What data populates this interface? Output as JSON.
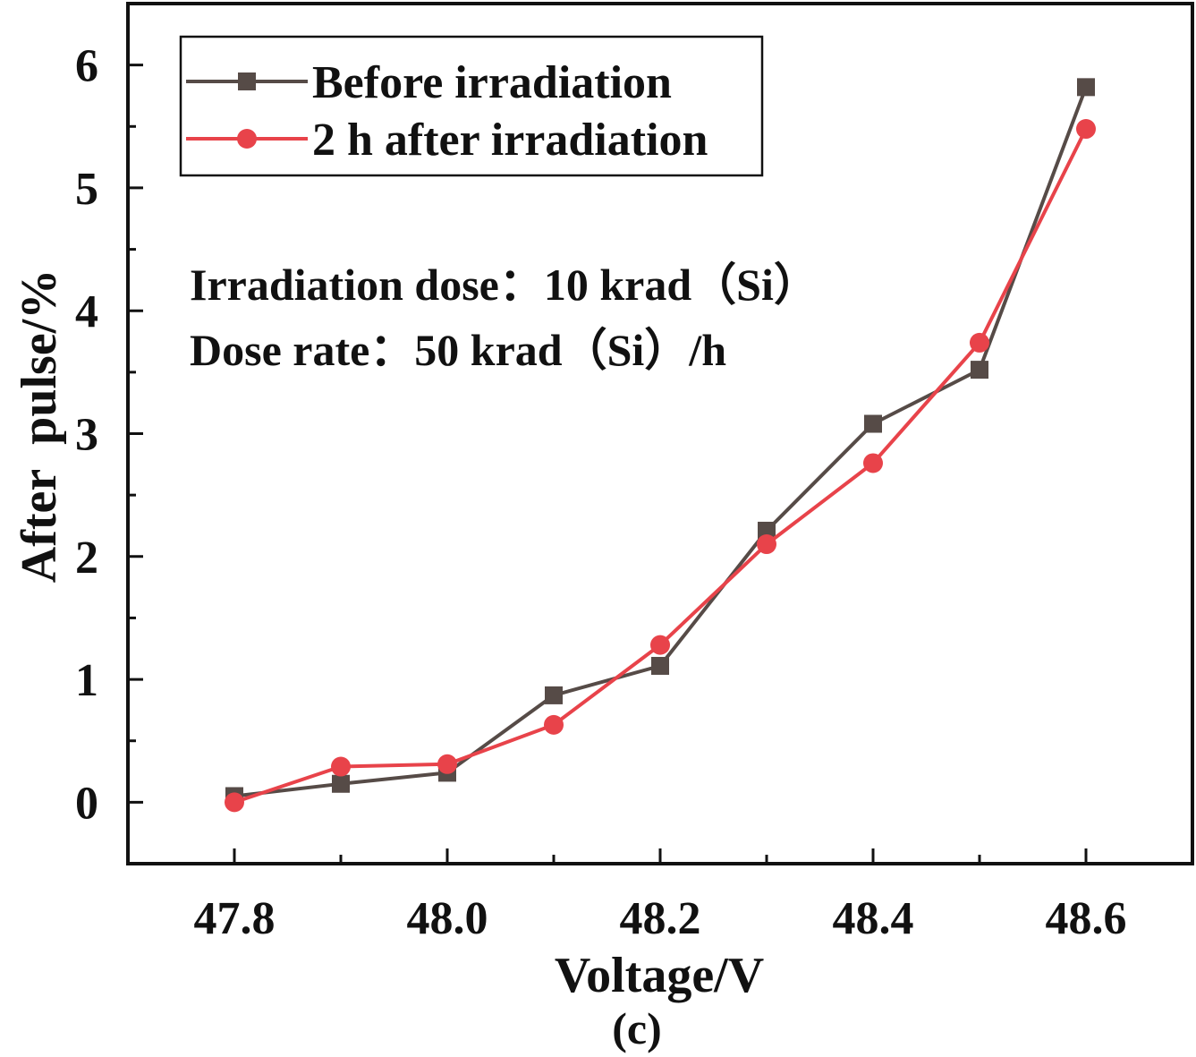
{
  "chart_data": {
    "type": "line",
    "title": "",
    "caption": "(c)",
    "xlabel": "Voltage/V",
    "ylabel": "After  pulse/%",
    "xlim": [
      47.7,
      48.7
    ],
    "ylim": [
      -0.5,
      6.5
    ],
    "x_major_ticks": [
      47.8,
      48.0,
      48.2,
      48.4,
      48.6
    ],
    "x_tick_labels": [
      "47.8",
      "48.0",
      "48.2",
      "48.4",
      "48.6"
    ],
    "x_minor_ticks": [
      47.9,
      48.1,
      48.3,
      48.5
    ],
    "y_major_ticks": [
      0,
      1,
      2,
      3,
      4,
      5,
      6
    ],
    "y_tick_labels": [
      "0",
      "1",
      "2",
      "3",
      "4",
      "5",
      "6"
    ],
    "y_minor_ticks": [
      0.5,
      1.5,
      2.5,
      3.5,
      4.5,
      5.5
    ],
    "grid": false,
    "legend_position": "top-left",
    "x": [
      47.8,
      47.9,
      48.0,
      48.1,
      48.2,
      48.3,
      48.4,
      48.5,
      48.6
    ],
    "series": [
      {
        "name": "Before irradiation",
        "marker": "square",
        "color": "#564b47",
        "values": [
          0.05,
          0.15,
          0.24,
          0.87,
          1.11,
          2.21,
          3.08,
          3.52,
          5.82
        ]
      },
      {
        "name": "2 h after irradiation",
        "marker": "circle",
        "color": "#e8434a",
        "values": [
          0.0,
          0.29,
          0.31,
          0.63,
          1.28,
          2.1,
          2.76,
          3.74,
          5.48
        ]
      }
    ],
    "annotations": [
      "Irradiation dose：10 krad（Si）",
      "Dose rate：50 krad（Si）/h"
    ]
  }
}
